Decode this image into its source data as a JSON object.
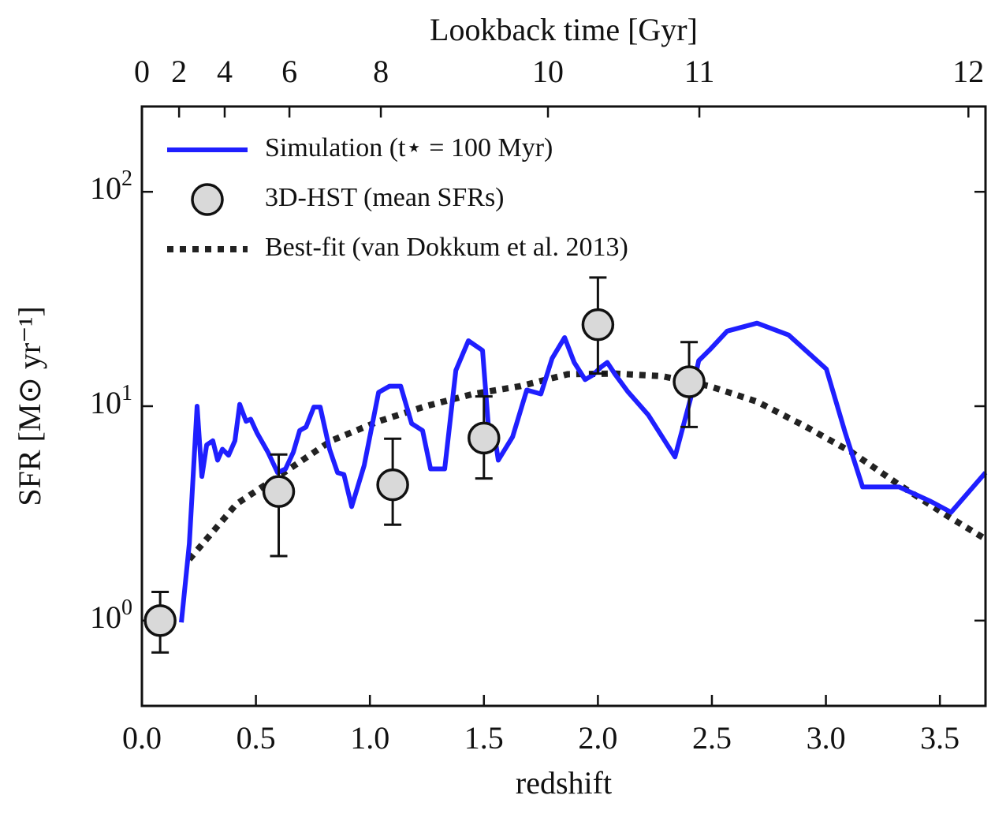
{
  "chart_data": {
    "type": "line",
    "xlabel": "redshift",
    "ylabel": "SFR [M⊙ yr⁻¹]",
    "x2label": "Lookback time [Gyr]",
    "xlim": [
      0,
      3.7
    ],
    "ylim": [
      0.4,
      250
    ],
    "yscale": "log",
    "xticks": [
      {
        "value": 0,
        "label": "0.0"
      },
      0.5,
      {
        "value": 1,
        "label": "1.0"
      },
      1.5,
      {
        "value": 2,
        "label": "2.0"
      },
      2.5,
      {
        "value": 3,
        "label": "3.0"
      },
      3.5
    ],
    "yticks": [
      {
        "value": 1,
        "label": "10^0"
      },
      {
        "value": 10,
        "label": "10^1"
      },
      {
        "value": 100,
        "label": "10^2"
      }
    ],
    "x2ticks": [
      {
        "value": 0,
        "label": "0"
      },
      {
        "value": 0.163,
        "label": "2"
      },
      {
        "value": 0.363,
        "label": "4"
      },
      {
        "value": 0.647,
        "label": "6"
      },
      {
        "value": 1.048,
        "label": "8"
      },
      {
        "value": 1.781,
        "label": "10"
      },
      {
        "value": 2.445,
        "label": "11"
      },
      {
        "value": 3.625,
        "label": "12"
      }
    ],
    "legend": "upper left",
    "series": [
      {
        "name": "Simulation (t⋆ = 100 Myr)",
        "style": "solid",
        "color": "#1f1fff",
        "x": [
          0.173,
          0.208,
          0.242,
          0.263,
          0.284,
          0.311,
          0.332,
          0.353,
          0.38,
          0.408,
          0.429,
          0.457,
          0.477,
          0.505,
          0.553,
          0.595,
          0.63,
          0.664,
          0.692,
          0.72,
          0.754,
          0.782,
          0.823,
          0.858,
          0.886,
          0.92,
          0.975,
          1.038,
          1.086,
          1.135,
          1.183,
          1.231,
          1.266,
          1.328,
          1.377,
          1.432,
          1.494,
          1.522,
          1.543,
          1.563,
          1.626,
          1.688,
          1.75,
          1.799,
          1.854,
          1.896,
          1.944,
          1.979,
          2.013,
          2.041,
          2.075,
          2.131,
          2.221,
          2.338,
          2.407,
          2.442,
          2.49,
          2.567,
          2.698,
          2.836,
          3.002,
          3.085,
          3.161,
          3.321,
          3.459,
          3.549,
          3.7
        ],
        "values": [
          0.98,
          2.29,
          10.0,
          4.7,
          6.6,
          6.9,
          5.6,
          6.3,
          5.9,
          6.9,
          10.2,
          8.5,
          8.7,
          7.5,
          6.1,
          4.9,
          5.1,
          6.1,
          7.7,
          8.0,
          9.9,
          9.9,
          6.3,
          4.9,
          4.8,
          3.4,
          5.3,
          11.6,
          12.4,
          12.4,
          8.3,
          7.7,
          5.1,
          5.1,
          14.7,
          20.2,
          18.2,
          7.5,
          7.8,
          5.6,
          7.2,
          11.9,
          11.4,
          16.7,
          20.9,
          16.0,
          13.3,
          14.0,
          15.2,
          16.0,
          14.1,
          11.7,
          9.1,
          5.8,
          10.9,
          16.3,
          18.3,
          22.4,
          24.4,
          21.5,
          14.9,
          7.5,
          4.2,
          4.2,
          3.6,
          3.2,
          4.9
        ]
      },
      {
        "name": "3D-HST (mean SFRs)",
        "style": "marker",
        "color": "#d9d9d9",
        "x": [
          0.08,
          0.6,
          1.1,
          1.5,
          2.0,
          2.4
        ],
        "values": [
          1.0,
          4.0,
          4.3,
          7.1,
          24,
          13
        ],
        "lower": [
          0.71,
          2.0,
          2.8,
          4.6,
          14.2,
          8.0
        ],
        "upper": [
          1.36,
          5.95,
          7.05,
          11.1,
          39.8,
          19.9
        ]
      },
      {
        "name": "Best-fit (van Dokkum et al. 2013)",
        "style": "dotted",
        "color": "#222222",
        "x": [
          0.208,
          0.415,
          0.623,
          0.83,
          1.038,
          1.245,
          1.453,
          1.66,
          1.868,
          2.075,
          2.283,
          2.49,
          2.698,
          2.905,
          3.113,
          3.321,
          3.528,
          3.7
        ],
        "values": [
          1.93,
          3.5,
          4.9,
          6.9,
          8.5,
          10,
          11.4,
          12.4,
          14.1,
          14.2,
          13.8,
          12.4,
          10.5,
          8.1,
          6.1,
          4.3,
          3.1,
          2.4
        ]
      }
    ]
  }
}
